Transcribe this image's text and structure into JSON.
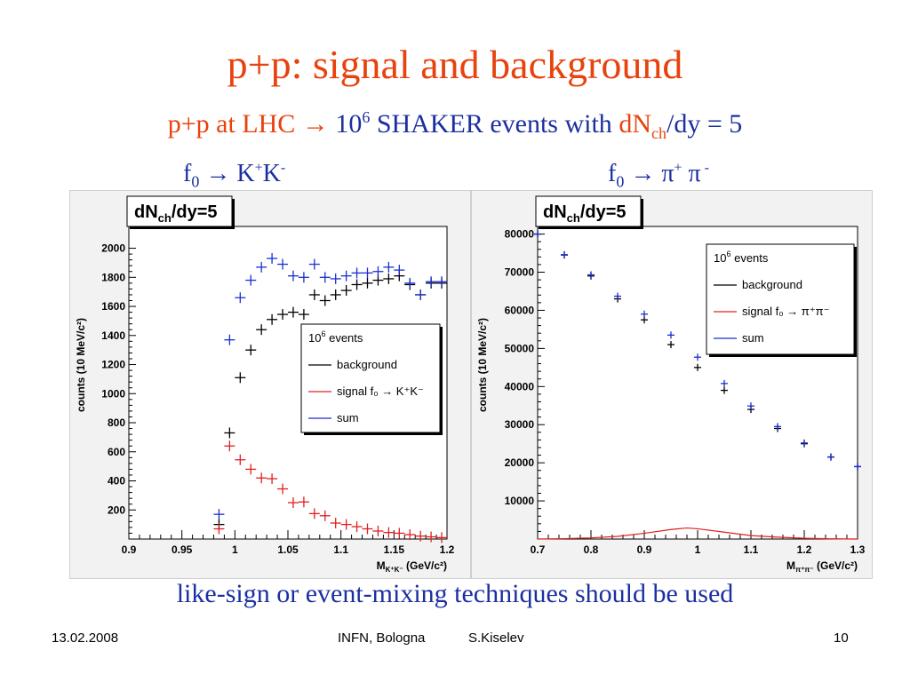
{
  "slide": {
    "title": "p+p: signal and background",
    "subtitle_prefix": "p+p at LHC",
    "subtitle_arrow": "→",
    "subtitle_ten": "10",
    "subtitle_exp": "6",
    "subtitle_mid": " SHAKER events with ",
    "subtitle_dn": "dN",
    "subtitle_ch": "ch",
    "subtitle_suffix": "/dy = 5",
    "left_channel": {
      "f": "f",
      "sub": "0",
      "arrow": "→",
      "prod": "K",
      "p1": "+",
      "prod2": "K",
      "p2": "-"
    },
    "right_channel": {
      "f": "f",
      "sub": "0",
      "arrow": "→",
      "prod": "π",
      "p1": "+",
      "prod2": " π",
      "p2": " -"
    },
    "bottom_note": "like-sign or event-mixing techniques should be used",
    "footer_date": "13.02.2008",
    "footer_place": "INFN, Bologna",
    "footer_author": "S.Kiselev",
    "footer_page": "10"
  },
  "colors": {
    "title": "#e8420d",
    "text_blue": "#1c2fa0",
    "background": "#000000",
    "signal": "#e02020",
    "sum": "#1a2fd0"
  },
  "chart_data": [
    {
      "type": "scatter",
      "title": "dN_ch/dy=5",
      "title_main": "dN",
      "title_sub": "ch",
      "title_tail": "/dy=5",
      "ylabel": "counts (10 MeV/c²)",
      "xlabel": "M_K+K- (GeV/c²)",
      "xlabel_main": "M",
      "xlabel_sub": "K⁺K⁻",
      "xlabel_unit": " (GeV/c²)",
      "xlim": [
        0.9,
        1.2
      ],
      "ylim": [
        0,
        2150
      ],
      "xticks": [
        "0.9",
        "0.95",
        "1",
        "1.05",
        "1.1",
        "1.15",
        "1.2"
      ],
      "xtick_values": [
        0.9,
        0.95,
        1.0,
        1.05,
        1.1,
        1.15,
        1.2
      ],
      "yticks": [
        "200",
        "400",
        "600",
        "800",
        "1000",
        "1200",
        "1400",
        "1600",
        "1800",
        "2000"
      ],
      "ytick_values": [
        200,
        400,
        600,
        800,
        1000,
        1200,
        1400,
        1600,
        1800,
        2000
      ],
      "legend": {
        "header_main": "10",
        "header_exp": "6",
        "header_tail": " events",
        "entries": [
          "background",
          "signal f₀ → K⁺K⁻",
          "sum"
        ],
        "entry_colors": [
          "#000000",
          "#e02020",
          "#1a2fd0"
        ]
      },
      "series": [
        {
          "name": "background",
          "color": "#000000",
          "x": [
            0.985,
            0.995,
            1.005,
            1.015,
            1.025,
            1.035,
            1.045,
            1.055,
            1.065,
            1.075,
            1.085,
            1.095,
            1.105,
            1.115,
            1.125,
            1.135,
            1.145,
            1.155,
            1.165,
            1.175,
            1.185,
            1.195
          ],
          "y": [
            100,
            730,
            1110,
            1300,
            1440,
            1510,
            1545,
            1560,
            1545,
            1680,
            1640,
            1680,
            1710,
            1750,
            1760,
            1780,
            1790,
            1810,
            1750,
            1680,
            1760,
            1760
          ]
        },
        {
          "name": "signal f₀ → K⁺K⁻",
          "color": "#e02020",
          "x": [
            0.985,
            0.995,
            1.005,
            1.015,
            1.025,
            1.035,
            1.045,
            1.055,
            1.065,
            1.075,
            1.085,
            1.095,
            1.105,
            1.115,
            1.125,
            1.135,
            1.145,
            1.155,
            1.165,
            1.175,
            1.185,
            1.195
          ],
          "y": [
            70,
            640,
            545,
            480,
            420,
            415,
            345,
            250,
            255,
            175,
            160,
            110,
            100,
            85,
            70,
            55,
            45,
            40,
            30,
            20,
            15,
            10
          ]
        },
        {
          "name": "sum",
          "color": "#1a2fd0",
          "x": [
            0.985,
            0.995,
            1.005,
            1.015,
            1.025,
            1.035,
            1.045,
            1.055,
            1.065,
            1.075,
            1.085,
            1.095,
            1.105,
            1.115,
            1.125,
            1.135,
            1.145,
            1.155,
            1.165,
            1.175,
            1.185,
            1.195
          ],
          "y": [
            170,
            1370,
            1660,
            1780,
            1870,
            1930,
            1890,
            1810,
            1800,
            1890,
            1800,
            1790,
            1810,
            1830,
            1830,
            1840,
            1870,
            1850,
            1760,
            1680,
            1770,
            1770
          ]
        }
      ]
    },
    {
      "type": "scatter",
      "title": "dN_ch/dy=5",
      "title_main": "dN",
      "title_sub": "ch",
      "title_tail": "/dy=5",
      "ylabel": "counts (10 MeV/c²)",
      "xlabel": "M_π+π- (GeV/c²)",
      "xlabel_main": "M",
      "xlabel_sub": "π⁺π⁻",
      "xlabel_unit": " (GeV/c²)",
      "xlim": [
        0.7,
        1.3
      ],
      "ylim": [
        0,
        82000
      ],
      "xticks": [
        "0.7",
        "0.8",
        "0.9",
        "1",
        "1.1",
        "1.2",
        "1.3"
      ],
      "xtick_values": [
        0.7,
        0.8,
        0.9,
        1.0,
        1.1,
        1.2,
        1.3
      ],
      "yticks": [
        "10000",
        "20000",
        "30000",
        "40000",
        "50000",
        "60000",
        "70000",
        "80000"
      ],
      "ytick_values": [
        10000,
        20000,
        30000,
        40000,
        50000,
        60000,
        70000,
        80000
      ],
      "legend": {
        "header_main": "10",
        "header_exp": "6",
        "header_tail": " events",
        "entries": [
          "background",
          "signal f₀ → π⁺π⁻",
          "sum"
        ],
        "entry_colors": [
          "#000000",
          "#e02020",
          "#1a2fd0"
        ]
      },
      "series": [
        {
          "name": "background",
          "color": "#000000",
          "x": [
            0.7,
            0.75,
            0.8,
            0.85,
            0.9,
            0.95,
            1.0,
            1.05,
            1.1,
            1.15,
            1.2,
            1.25,
            1.3
          ],
          "y": [
            80000,
            74500,
            69000,
            63000,
            57500,
            51000,
            45000,
            39000,
            34000,
            29000,
            25000,
            21500,
            19000
          ]
        },
        {
          "name": "signal f₀ → π⁺π⁻",
          "color": "#e02020",
          "x": [
            0.7,
            0.75,
            0.8,
            0.85,
            0.9,
            0.95,
            0.98,
            1.0,
            1.05,
            1.1,
            1.15,
            1.2,
            1.25,
            1.3
          ],
          "y": [
            0,
            100,
            300,
            700,
            1500,
            2500,
            2900,
            2700,
            1800,
            900,
            500,
            200,
            50,
            0
          ]
        },
        {
          "name": "sum",
          "color": "#1a2fd0",
          "x": [
            0.7,
            0.75,
            0.8,
            0.85,
            0.9,
            0.95,
            1.0,
            1.05,
            1.1,
            1.15,
            1.2,
            1.25,
            1.3
          ],
          "y": [
            80000,
            74600,
            69300,
            63700,
            59000,
            53500,
            47700,
            40800,
            34900,
            29500,
            25200,
            21550,
            19000
          ]
        }
      ]
    }
  ]
}
